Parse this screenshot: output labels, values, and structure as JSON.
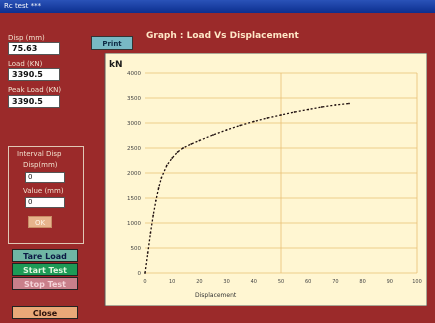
{
  "window": {
    "title": "Rc test ***"
  },
  "readouts": {
    "disp_label": "Disp (mm)",
    "disp_value": "75.63",
    "load_label": "Load (KN)",
    "load_value": "3390.5",
    "peak_label": "Peak Load (KN)",
    "peak_value": "3390.5"
  },
  "settings": {
    "title": "Interval Disp",
    "field1_label": "Disp(mm)",
    "field1_value": "0",
    "field2_label": "Value (mm)",
    "field2_value": "0",
    "ok_label": "OK"
  },
  "buttons": {
    "tare_label": "Tare Load",
    "start_label": "Start Test",
    "stop_label": "Stop Test",
    "close_label": "Close",
    "print_label": "Print"
  },
  "graph": {
    "title": "Graph : Load Vs Displacement"
  },
  "chart_data": {
    "type": "line",
    "title": "Graph : Load Vs Displacement",
    "ylabel": "kN",
    "xlabel": "Displacement",
    "ylim": [
      0,
      4000
    ],
    "xlim": [
      0,
      100
    ],
    "y_ticks": [
      "4000",
      "3500",
      "3000",
      "2500",
      "2000",
      "1500",
      "1000",
      "500",
      "0"
    ],
    "x_ticks": [
      "0",
      "10",
      "20",
      "30",
      "40",
      "50",
      "60",
      "70",
      "80",
      "90",
      "100"
    ],
    "grid": true,
    "x": [
      0,
      1,
      2,
      3,
      4,
      5,
      6,
      8,
      10,
      12,
      14,
      17,
      20,
      25,
      30,
      35,
      40,
      45,
      50,
      55,
      60,
      65,
      70,
      75
    ],
    "y": [
      0,
      400,
      800,
      1150,
      1450,
      1700,
      1900,
      2150,
      2300,
      2420,
      2500,
      2580,
      2650,
      2760,
      2860,
      2950,
      3030,
      3100,
      3160,
      3220,
      3270,
      3320,
      3360,
      3390
    ],
    "series_color": "#1c0d0d"
  }
}
